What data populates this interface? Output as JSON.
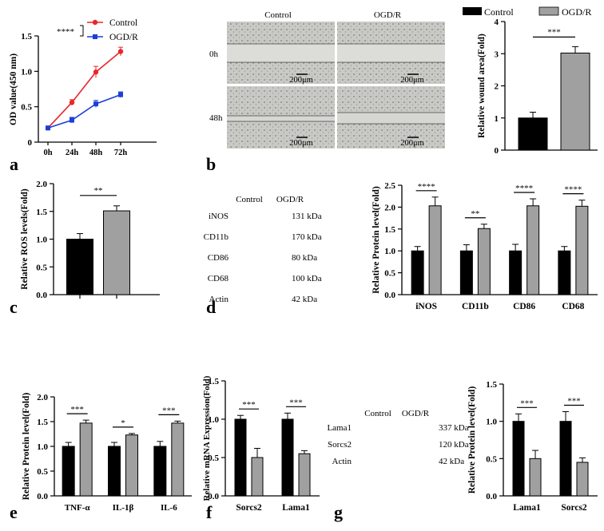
{
  "panels": {
    "a": "a",
    "b": "b",
    "c": "c",
    "d": "d",
    "e": "e",
    "f": "f",
    "g": "g"
  },
  "colors": {
    "control": "#000000",
    "ogdr": "#a0a0a0",
    "line_control": "#e8262b",
    "line_ogdr": "#1e3fd8"
  },
  "chart_data": [
    {
      "id": "a",
      "type": "line",
      "x": [
        "0h",
        "24h",
        "48h",
        "72h"
      ],
      "series": [
        {
          "name": "Control",
          "values": [
            0.2,
            0.56,
            0.99,
            1.28
          ],
          "err": [
            0.02,
            0.04,
            0.08,
            0.06
          ]
        },
        {
          "name": "OGD/R",
          "values": [
            0.2,
            0.31,
            0.54,
            0.67
          ],
          "err": [
            0.02,
            0.04,
            0.05,
            0.04
          ]
        }
      ],
      "ylabel": "OD value(450 nm)",
      "ylim": [
        0,
        1.5
      ],
      "yticks": [
        "0",
        "0.5",
        "1.0",
        "1.5"
      ],
      "sig": "****",
      "legend": [
        "Control",
        "OGD/R"
      ]
    },
    {
      "id": "b_bar",
      "type": "bar",
      "categories": [
        "Control",
        "OGD/R"
      ],
      "values": [
        1.0,
        3.02
      ],
      "err": [
        0.18,
        0.2
      ],
      "ylabel": "Relative wound area(Fold)",
      "ylim": [
        0,
        4
      ],
      "yticks": [
        "0",
        "1",
        "2",
        "3",
        "4"
      ],
      "sig": "***",
      "legend": [
        "Control",
        "OGD/R"
      ]
    },
    {
      "id": "c",
      "type": "bar",
      "categories": [
        "Control",
        "OGD/R"
      ],
      "values": [
        1.0,
        1.51
      ],
      "err": [
        0.1,
        0.09
      ],
      "ylabel": "Relative ROS levels(Fold)",
      "ylim": [
        0,
        2.0
      ],
      "yticks": [
        "0.0",
        "0.5",
        "1.0",
        "1.5",
        "2.0"
      ],
      "sig": "**"
    },
    {
      "id": "d_bar",
      "type": "bar",
      "categories": [
        "iNOS",
        "CD11b",
        "CD86",
        "CD68"
      ],
      "series": [
        {
          "name": "Control",
          "values": [
            1.0,
            1.0,
            1.0,
            1.0
          ],
          "err": [
            0.1,
            0.14,
            0.15,
            0.1
          ]
        },
        {
          "name": "OGD/R",
          "values": [
            2.03,
            1.51,
            2.03,
            2.02
          ],
          "err": [
            0.2,
            0.1,
            0.16,
            0.14
          ]
        }
      ],
      "sig": [
        "****",
        "**",
        "****",
        "****"
      ],
      "ylabel": "Relative Protein level(Fold)",
      "ylim": [
        0,
        2.5
      ],
      "yticks": [
        "0.0",
        "0.5",
        "1.0",
        "1.5",
        "2.0",
        "2.5"
      ]
    },
    {
      "id": "e",
      "type": "bar",
      "categories": [
        "TNF-α",
        "IL-1β",
        "IL-6"
      ],
      "series": [
        {
          "name": "Control",
          "values": [
            1.0,
            1.0,
            1.0
          ],
          "err": [
            0.08,
            0.08,
            0.1
          ]
        },
        {
          "name": "OGD/R",
          "values": [
            1.47,
            1.23,
            1.47
          ],
          "err": [
            0.06,
            0.03,
            0.04
          ]
        }
      ],
      "sig": [
        "***",
        "*",
        "***"
      ],
      "ylabel": "Relative Protein level(Fold)",
      "ylim": [
        0,
        2.0
      ],
      "yticks": [
        "0.0",
        "0.5",
        "1.0",
        "1.5",
        "2.0"
      ]
    },
    {
      "id": "f",
      "type": "bar",
      "categories": [
        "Sorcs2",
        "Lama1"
      ],
      "series": [
        {
          "name": "Control",
          "values": [
            1.0,
            1.0
          ],
          "err": [
            0.05,
            0.08
          ]
        },
        {
          "name": "OGD/R",
          "values": [
            0.5,
            0.55
          ],
          "err": [
            0.12,
            0.04
          ]
        }
      ],
      "sig": [
        "***",
        "***"
      ],
      "ylabel": "Relative mRNA Expression(Fold)",
      "ylim": [
        0,
        1.5
      ],
      "yticks": [
        "0.0",
        "0.5",
        "1.0",
        "1.5"
      ]
    },
    {
      "id": "g_bar",
      "type": "bar",
      "categories": [
        "Lama1",
        "Sorcs2"
      ],
      "series": [
        {
          "name": "Control",
          "values": [
            1.0,
            1.0
          ],
          "err": [
            0.1,
            0.13
          ]
        },
        {
          "name": "OGD/R",
          "values": [
            0.5,
            0.45
          ],
          "err": [
            0.11,
            0.06
          ]
        }
      ],
      "sig": [
        "***",
        "***"
      ],
      "ylabel": "Relative Protein level(Fold)",
      "ylim": [
        0,
        1.5
      ],
      "yticks": [
        "0.0",
        "0.5",
        "1.0",
        "1.5"
      ]
    }
  ],
  "micro": {
    "col_control": "Control",
    "col_ogdr": "OGD/R",
    "row_0": "0h",
    "row_48": "48h",
    "scale": "200μm"
  },
  "blot_d": {
    "col_control": "Control",
    "col_ogdr": "OGD/R",
    "rows": [
      {
        "name": "iNOS",
        "kda": "131 kDa"
      },
      {
        "name": "CD11b",
        "kda": "170 kDa"
      },
      {
        "name": "CD86",
        "kda": "80 kDa"
      },
      {
        "name": "CD68",
        "kda": "100 kDa"
      },
      {
        "name": "Actin",
        "kda": "42 kDa"
      }
    ]
  },
  "blot_g": {
    "col_control": "Control",
    "col_ogdr": "OGD/R",
    "rows": [
      {
        "name": "Lama1",
        "kda": "337 kDa"
      },
      {
        "name": "Sorcs2",
        "kda": "120 kDa"
      },
      {
        "name": "Actin",
        "kda": "42 kDa"
      }
    ]
  }
}
